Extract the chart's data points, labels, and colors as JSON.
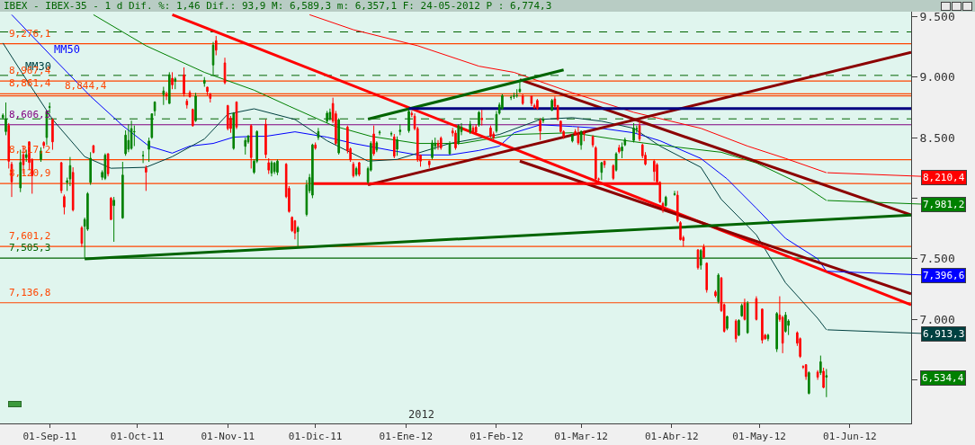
{
  "chart_data": {
    "type": "candlestick",
    "title": "IBEX - IBEX-35 - 1 d Dif. %: 1,46 Dif.: 93,9 M: 6,589,3 m: 6,357,1 F: 24-05-2012 P : 6,774,3",
    "colors": [
      "#008000",
      "#008000",
      "#ff0000",
      "#ff0000",
      "#008000",
      "#ff0000",
      "#008000",
      "#ff0000",
      "#ff0000",
      "#008000",
      "#ff0000",
      "#008000",
      "#008000",
      "#ff0000",
      "#ff0000",
      "#ff0000",
      "#008000",
      "#008000",
      "#ff0000",
      "#ff0000",
      "#008000",
      "#008000",
      "#008000",
      "#ff0000",
      "#008000",
      "#008000",
      "#ff0000",
      "#ff0000",
      "#008000",
      "#008000",
      "#008000",
      "#008000",
      "#008000",
      "#008000",
      "#008000",
      "#ff0000",
      "#008000",
      "#008000",
      "#008000",
      "#008000",
      "#ff0000",
      "#008000",
      "#ff0000",
      "#008000",
      "#ff0000",
      "#ff0000",
      "#ff0000",
      "#ff0000",
      "#008000",
      "#008000",
      "#ff0000",
      "#ff0000",
      "#008000",
      "#ff0000",
      "#ff0000",
      "#ff0000",
      "#ff0000",
      "#008000",
      "#ff0000",
      "#008000",
      "#008000",
      "#ff0000",
      "#008000",
      "#008000",
      "#ff0000",
      "#ff0000",
      "#008000",
      "#008000",
      "#008000",
      "#ff0000",
      "#ff0000",
      "#ff0000",
      "#ff0000",
      "#008000",
      "#008000",
      "#008000",
      "#008000",
      "#ff0000",
      "#008000",
      "#008000",
      "#008000",
      "#ff0000",
      "#ff0000",
      "#008000",
      "#ff0000",
      "#ff0000",
      "#ff0000",
      "#008000",
      "#ff0000",
      "#008000",
      "#008000",
      "#ff0000",
      "#008000",
      "#008000",
      "#008000",
      "#ff0000",
      "#008000",
      "#008000",
      "#008000",
      "#ff0000",
      "#ff0000",
      "#ff0000",
      "#ff0000",
      "#ff0000",
      "#008000",
      "#008000",
      "#ff0000",
      "#ff0000",
      "#008000",
      "#ff0000",
      "#ff0000",
      "#008000",
      "#008000",
      "#008000",
      "#ff0000",
      "#ff0000",
      "#008000",
      "#ff0000",
      "#ff0000",
      "#ff0000",
      "#008000",
      "#008000",
      "#008000",
      "#008000",
      "#008000",
      "#008000",
      "#008000",
      "#ff0000",
      "#ff0000",
      "#ff0000",
      "#ff0000",
      "#ff0000",
      "#008000",
      "#008000",
      "#ff0000",
      "#ff0000",
      "#ff0000",
      "#ff0000",
      "#008000",
      "#ff0000",
      "#ff0000",
      "#008000",
      "#ff0000",
      "#ff0000",
      "#ff0000",
      "#ff0000",
      "#008000",
      "#ff0000",
      "#ff0000",
      "#008000",
      "#ff0000",
      "#008000",
      "#008000",
      "#008000",
      "#008000",
      "#ff0000",
      "#ff0000",
      "#ff0000",
      "#ff0000",
      "#ff0000",
      "#ff0000",
      "#ff0000",
      "#008000",
      "#008000",
      "#ff0000",
      "#ff0000",
      "#ff0000",
      "#ff0000",
      "#008000",
      "#ff0000",
      "#ff0000",
      "#ff0000",
      "#008000",
      "#ff0000",
      "#ff0000",
      "#008000",
      "#ff0000",
      "#008000",
      "#008000",
      "#ff0000",
      "#008000",
      "#ff0000",
      "#ff0000",
      "#ff0000",
      "#008000",
      "#008000",
      "#ff0000",
      "#ff0000",
      "#008000",
      "#008000",
      "#ff0000",
      "#ff0000",
      "#ff0000",
      "#ff0000",
      "#008000",
      "#ff0000",
      "#008000",
      "#ff0000",
      "#008000"
    ],
    "x": [
      "2011-08-16",
      "2011-08-17",
      "2011-08-18",
      "2011-08-19",
      "2011-08-22",
      "2011-08-23",
      "2011-08-24",
      "2011-08-25",
      "2011-08-26",
      "2011-08-29",
      "2011-08-30",
      "2011-08-31",
      "2011-09-01",
      "2011-09-02",
      "2011-09-05",
      "2011-09-06",
      "2011-09-07",
      "2011-09-08",
      "2011-09-09",
      "2011-09-12",
      "2011-09-13",
      "2011-09-14",
      "2011-09-15",
      "2011-09-16",
      "2011-09-19",
      "2011-09-20",
      "2011-09-21",
      "2011-09-22",
      "2011-09-23",
      "2011-09-26",
      "2011-09-27",
      "2011-09-28",
      "2011-09-29",
      "2011-09-30",
      "2011-10-03",
      "2011-10-04",
      "2011-10-05",
      "2011-10-06",
      "2011-10-07",
      "2011-10-10",
      "2011-10-11",
      "2011-10-12",
      "2011-10-13",
      "2011-10-14",
      "2011-10-17",
      "2011-10-18",
      "2011-10-19",
      "2011-10-20",
      "2011-10-21",
      "2011-10-24",
      "2011-10-25",
      "2011-10-26",
      "2011-10-27",
      "2011-10-28",
      "2011-10-31",
      "2011-11-01",
      "2011-11-02",
      "2011-11-03",
      "2011-11-04",
      "2011-11-07",
      "2011-11-08",
      "2011-11-09",
      "2011-11-10",
      "2011-11-11",
      "2011-11-14",
      "2011-11-15",
      "2011-11-16",
      "2011-11-17",
      "2011-11-18",
      "2011-11-21",
      "2011-11-22",
      "2011-11-23",
      "2011-11-24",
      "2011-11-25",
      "2011-11-28",
      "2011-11-29",
      "2011-11-30",
      "2011-12-01",
      "2011-12-02",
      "2011-12-05",
      "2011-12-06",
      "2011-12-07",
      "2011-12-08",
      "2011-12-09",
      "2011-12-12",
      "2011-12-13",
      "2011-12-14",
      "2011-12-15",
      "2011-12-16",
      "2011-12-19",
      "2011-12-20",
      "2011-12-21",
      "2011-12-22",
      "2011-12-23",
      "2011-12-27",
      "2011-12-28",
      "2011-12-29",
      "2011-12-30",
      "2012-01-02",
      "2012-01-03",
      "2012-01-04",
      "2012-01-05",
      "2012-01-06",
      "2012-01-09",
      "2012-01-10",
      "2012-01-11",
      "2012-01-12",
      "2012-01-13",
      "2012-01-16",
      "2012-01-17",
      "2012-01-18",
      "2012-01-19",
      "2012-01-20",
      "2012-01-23",
      "2012-01-24",
      "2012-01-25",
      "2012-01-26",
      "2012-01-27",
      "2012-01-30",
      "2012-01-31",
      "2012-02-01",
      "2012-02-02",
      "2012-02-03",
      "2012-02-06",
      "2012-02-07",
      "2012-02-08",
      "2012-02-09",
      "2012-02-10",
      "2012-02-13",
      "2012-02-14",
      "2012-02-15",
      "2012-02-16",
      "2012-02-17",
      "2012-02-20",
      "2012-02-21",
      "2012-02-22",
      "2012-02-23",
      "2012-02-24",
      "2012-02-27",
      "2012-02-28",
      "2012-02-29",
      "2012-03-01",
      "2012-03-02",
      "2012-03-05",
      "2012-03-06",
      "2012-03-07",
      "2012-03-08",
      "2012-03-09",
      "2012-03-12",
      "2012-03-13",
      "2012-03-14",
      "2012-03-15",
      "2012-03-16",
      "2012-03-19",
      "2012-03-20",
      "2012-03-21",
      "2012-03-22",
      "2012-03-23",
      "2012-03-26",
      "2012-03-27",
      "2012-03-28",
      "2012-03-29",
      "2012-03-30",
      "2012-04-02",
      "2012-04-03",
      "2012-04-04",
      "2012-04-05",
      "2012-04-10",
      "2012-04-11",
      "2012-04-12",
      "2012-04-13",
      "2012-04-16",
      "2012-04-17",
      "2012-04-18",
      "2012-04-19",
      "2012-04-20",
      "2012-04-23",
      "2012-04-24",
      "2012-04-25",
      "2012-04-26",
      "2012-04-27",
      "2012-04-30",
      "2012-05-02",
      "2012-05-03",
      "2012-05-04",
      "2012-05-07",
      "2012-05-08",
      "2012-05-09",
      "2012-05-10",
      "2012-05-11",
      "2012-05-14",
      "2012-05-15",
      "2012-05-16",
      "2012-05-17",
      "2012-05-18",
      "2012-05-21",
      "2012-05-22",
      "2012-05-23",
      "2012-05-24"
    ],
    "ohlc": [
      [
        8.665,
        8.7,
        8.65,
        8.685
      ],
      [
        8.55,
        8.79,
        8.52,
        8.655
      ],
      [
        8.6,
        8.62,
        8.245,
        8.305
      ],
      [
        8.28,
        8.3,
        8.01,
        8.135
      ],
      [
        8.085,
        8.4,
        8.05,
        8.295
      ],
      [
        8.36,
        8.43,
        8.2,
        8.276
      ],
      [
        8.335,
        8.4,
        8.3,
        8.36
      ],
      [
        8.465,
        8.47,
        8.23,
        8.295
      ],
      [
        8.318,
        8.33,
        8.037,
        8.185
      ],
      [
        8.318,
        8.42,
        8.3,
        8.39
      ],
      [
        8.46,
        8.47,
        8.41,
        8.435
      ],
      [
        8.501,
        8.72,
        8.44,
        8.714
      ],
      [
        8.75,
        8.79,
        8.7,
        8.755
      ],
      [
        8.648,
        8.66,
        8.4,
        8.465
      ],
      [
        8.293,
        8.3,
        8.04,
        8.062
      ],
      [
        8.013,
        8.03,
        7.866,
        7.927
      ],
      [
        8.13,
        8.17,
        8.06,
        8.145
      ],
      [
        8.159,
        8.34,
        8.1,
        8.269
      ],
      [
        8.213,
        8.255,
        7.89,
        7.903
      ],
      [
        7.756,
        7.77,
        7.597,
        7.627
      ],
      [
        7.768,
        7.84,
        7.505,
        7.824
      ],
      [
        7.744,
        8.05,
        7.73,
        8.037
      ],
      [
        8.13,
        8.38,
        8.11,
        8.33
      ],
      [
        8.433,
        8.44,
        8.37,
        8.379
      ],
      [
        8.173,
        8.23,
        8.15,
        8.213
      ],
      [
        8.164,
        8.37,
        8.15,
        8.355
      ],
      [
        8.367,
        8.37,
        8.18,
        8.201
      ],
      [
        8.0,
        8.01,
        7.82,
        7.824
      ],
      [
        7.939,
        8.01,
        7.64,
        7.983
      ],
      [
        7.837,
        8.3,
        7.83,
        8.191
      ],
      [
        8.367,
        8.56,
        8.35,
        8.521
      ],
      [
        8.404,
        8.61,
        8.38,
        8.477
      ],
      [
        8.411,
        8.64,
        8.4,
        8.575
      ],
      [
        8.547,
        8.6,
        8.43,
        8.55
      ],
      [
        8.35,
        8.39,
        8.29,
        8.352
      ],
      [
        8.25,
        8.27,
        8.06,
        8.215
      ],
      [
        8.404,
        8.5,
        8.3,
        8.472
      ],
      [
        8.501,
        8.7,
        8.49,
        8.697
      ],
      [
        8.721,
        8.8,
        8.68,
        8.794
      ],
      [
        8.855,
        8.92,
        8.77,
        8.885
      ],
      [
        8.855,
        8.88,
        8.81,
        8.845
      ],
      [
        8.782,
        9.04,
        8.78,
        9.019
      ],
      [
        8.99,
        9.04,
        8.9,
        8.936
      ],
      [
        8.965,
        9.0,
        8.9,
        8.985
      ],
      [
        9.019,
        9.08,
        8.84,
        8.863
      ],
      [
        8.802,
        8.82,
        8.74,
        8.77
      ],
      [
        8.872,
        8.89,
        8.83,
        8.838
      ],
      [
        8.733,
        8.74,
        8.59,
        8.599
      ],
      [
        8.64,
        8.87,
        8.63,
        8.843
      ],
      [
        8.948,
        9.0,
        8.92,
        8.973
      ],
      [
        8.917,
        8.92,
        8.85,
        8.88
      ],
      [
        8.86,
        8.87,
        8.79,
        8.824
      ],
      [
        9.1,
        9.29,
        9.02,
        9.264
      ],
      [
        9.3,
        9.34,
        9.18,
        9.222
      ],
      [
        9.117,
        9.16,
        8.94,
        8.953
      ],
      [
        8.765,
        8.77,
        8.56,
        8.575
      ],
      [
        8.66,
        8.68,
        8.54,
        8.575
      ],
      [
        8.411,
        8.71,
        8.4,
        8.701
      ],
      [
        8.794,
        8.8,
        8.57,
        8.587
      ],
      [
        8.428,
        8.5,
        8.36,
        8.477
      ],
      [
        8.465,
        8.52,
        8.45,
        8.514
      ],
      [
        8.599,
        8.61,
        8.245,
        8.335
      ],
      [
        8.213,
        8.32,
        8.2,
        8.306
      ],
      [
        8.306,
        8.56,
        8.29,
        8.55
      ],
      [
        8.611,
        8.65,
        8.33,
        8.36
      ],
      [
        8.293,
        8.33,
        8.2,
        8.232
      ],
      [
        8.208,
        8.31,
        8.18,
        8.293
      ],
      [
        8.22,
        8.3,
        8.2,
        8.29
      ],
      [
        8.213,
        8.32,
        8.19,
        8.306
      ],
      [
        8.281,
        8.29,
        8.0,
        8.012
      ],
      [
        8.081,
        8.1,
        7.88,
        7.89
      ],
      [
        7.842,
        7.85,
        7.72,
        7.732
      ],
      [
        7.813,
        7.82,
        7.66,
        7.712
      ],
      [
        7.724,
        7.77,
        7.597,
        7.756
      ],
      [
        7.866,
        8.15,
        7.85,
        8.11
      ],
      [
        8.061,
        8.2,
        8.04,
        8.171
      ],
      [
        8.025,
        8.45,
        8.0,
        8.44
      ],
      [
        8.44,
        8.46,
        8.4,
        8.413
      ],
      [
        8.501,
        8.58,
        8.48,
        8.55
      ],
      [
        8.636,
        8.72,
        8.62,
        8.702
      ],
      [
        8.655,
        8.74,
        8.64,
        8.709
      ],
      [
        8.782,
        8.83,
        8.62,
        8.636
      ],
      [
        8.697,
        8.72,
        8.44,
        8.452
      ],
      [
        8.374,
        8.66,
        8.36,
        8.648
      ],
      [
        8.587,
        8.6,
        8.37,
        8.391
      ],
      [
        8.408,
        8.42,
        8.3,
        8.318
      ],
      [
        8.281,
        8.3,
        8.17,
        8.184
      ],
      [
        8.196,
        8.26,
        8.18,
        8.245
      ],
      [
        8.293,
        8.3,
        8.18,
        8.196
      ],
      [
        8.135,
        8.26,
        8.12,
        8.245
      ],
      [
        8.232,
        8.47,
        8.22,
        8.452
      ],
      [
        8.53,
        8.6,
        8.35,
        8.367
      ],
      [
        8.398,
        8.47,
        8.38,
        8.457
      ],
      [
        8.54,
        8.56,
        8.52,
        8.545
      ],
      [
        8.53,
        8.55,
        8.51,
        8.533
      ],
      [
        8.506,
        8.53,
        8.33,
        8.347
      ],
      [
        8.404,
        8.51,
        8.35,
        8.482
      ],
      [
        8.55,
        8.61,
        8.52,
        8.562
      ],
      [
        8.557,
        8.73,
        8.54,
        8.716
      ],
      [
        8.7,
        8.72,
        8.67,
        8.69
      ],
      [
        8.677,
        8.7,
        8.56,
        8.575
      ],
      [
        8.575,
        8.59,
        8.3,
        8.318
      ],
      [
        8.355,
        8.36,
        8.26,
        8.306
      ],
      [
        8.306,
        8.31,
        8.25,
        8.276
      ],
      [
        8.335,
        8.48,
        8.32,
        8.457
      ],
      [
        8.43,
        8.5,
        8.4,
        8.455
      ],
      [
        8.452,
        8.48,
        8.4,
        8.433
      ],
      [
        8.496,
        8.51,
        8.4,
        8.416
      ],
      [
        8.367,
        8.47,
        8.36,
        8.452
      ],
      [
        8.555,
        8.58,
        8.51,
        8.538
      ],
      [
        8.538,
        8.56,
        8.4,
        8.416
      ],
      [
        8.457,
        8.61,
        8.44,
        8.599
      ],
      [
        8.55,
        8.62,
        8.52,
        8.587
      ],
      [
        8.55,
        8.64,
        8.53,
        8.611
      ],
      [
        8.58,
        8.6,
        8.54,
        8.55
      ],
      [
        8.587,
        8.61,
        8.53,
        8.545
      ],
      [
        8.604,
        8.72,
        8.59,
        8.709
      ],
      [
        8.66,
        8.73,
        8.6,
        8.648
      ],
      [
        8.58,
        8.6,
        8.5,
        8.514
      ],
      [
        8.53,
        8.55,
        8.48,
        8.501
      ],
      [
        8.555,
        8.72,
        8.54,
        8.692
      ],
      [
        8.701,
        8.79,
        8.69,
        8.77
      ],
      [
        8.741,
        8.86,
        8.73,
        8.848
      ],
      [
        8.83,
        8.85,
        8.81,
        8.832
      ],
      [
        8.84,
        8.87,
        8.82,
        8.845
      ],
      [
        8.845,
        8.9,
        8.83,
        8.848
      ],
      [
        8.88,
        8.978,
        8.87,
        8.9
      ],
      [
        8.843,
        8.86,
        8.77,
        8.782
      ],
      [
        8.843,
        8.85,
        8.76,
        8.782
      ],
      [
        8.765,
        8.78,
        8.74,
        8.746
      ],
      [
        8.807,
        8.82,
        8.73,
        8.741
      ],
      [
        8.64,
        8.66,
        8.48,
        8.555
      ],
      [
        8.64,
        8.67,
        8.62,
        8.652
      ],
      [
        8.726,
        8.82,
        8.72,
        8.807
      ],
      [
        8.819,
        8.84,
        8.74,
        8.758
      ],
      [
        8.765,
        8.77,
        8.64,
        8.653
      ],
      [
        8.636,
        8.64,
        8.54,
        8.55
      ],
      [
        8.55,
        8.56,
        8.49,
        8.513
      ],
      [
        8.472,
        8.53,
        8.46,
        8.521
      ],
      [
        8.55,
        8.57,
        8.52,
        8.526
      ],
      [
        8.53,
        8.59,
        8.44,
        8.457
      ],
      [
        8.44,
        8.56,
        8.4,
        8.55
      ],
      [
        8.54,
        8.56,
        8.47,
        8.53
      ],
      [
        8.508,
        8.52,
        8.42,
        8.44
      ],
      [
        8.416,
        8.43,
        8.15,
        8.159
      ],
      [
        8.159,
        8.17,
        8.12,
        8.157
      ],
      [
        8.213,
        8.3,
        8.15,
        8.293
      ],
      [
        8.306,
        8.31,
        8.25,
        8.276
      ],
      [
        8.269,
        8.28,
        8.15,
        8.164
      ],
      [
        8.232,
        8.38,
        8.22,
        8.367
      ],
      [
        8.416,
        8.44,
        8.37,
        8.384
      ],
      [
        8.391,
        8.46,
        8.33,
        8.423
      ],
      [
        8.44,
        8.5,
        8.43,
        8.482
      ],
      [
        8.477,
        8.62,
        8.46,
        8.579
      ],
      [
        8.57,
        8.6,
        8.54,
        8.575
      ],
      [
        8.599,
        8.64,
        8.47,
        8.489
      ],
      [
        8.44,
        8.45,
        8.33,
        8.35
      ],
      [
        8.355,
        8.38,
        8.27,
        8.281
      ],
      [
        8.306,
        8.32,
        8.14,
        8.22
      ],
      [
        8.276,
        8.29,
        8.13,
        8.135
      ],
      [
        8.13,
        8.14,
        7.96,
        7.969
      ],
      [
        7.956,
        7.97,
        7.88,
        7.903
      ],
      [
        7.939,
        8.02,
        7.93,
        8.008
      ],
      [
        8.03,
        8.06,
        8.02,
        8.035
      ],
      [
        8.025,
        8.06,
        7.8,
        7.812
      ],
      [
        7.798,
        7.81,
        7.65,
        7.658
      ],
      [
        7.675,
        7.69,
        7.6,
        7.651
      ],
      [
        7.573,
        7.58,
        7.41,
        7.426
      ],
      [
        7.446,
        7.58,
        7.41,
        7.568
      ],
      [
        7.597,
        7.62,
        7.5,
        7.512
      ],
      [
        7.463,
        7.47,
        7.22,
        7.243
      ],
      [
        7.226,
        7.24,
        7.18,
        7.194
      ],
      [
        7.145,
        7.38,
        7.13,
        7.365
      ],
      [
        7.341,
        7.35,
        7.06,
        7.072
      ],
      [
        7.121,
        7.13,
        6.89,
        6.901
      ],
      [
        6.925,
        7.03,
        6.91,
        7.023
      ],
      [
        6.986,
        7.0,
        6.81,
        6.84
      ],
      [
        6.869,
        7.0,
        6.86,
        6.991
      ],
      [
        7.028,
        7.13,
        7.02,
        7.114
      ],
      [
        7.133,
        7.17,
        6.99,
        6.999
      ],
      [
        6.889,
        7.15,
        6.88,
        7.133
      ],
      [
        7.17,
        7.19,
        6.99,
        6.999
      ],
      [
        7.084,
        7.09,
        6.8,
        6.828
      ],
      [
        6.869,
        6.88,
        6.83,
        6.84
      ],
      [
        6.84,
        6.88,
        6.82,
        6.869
      ],
      [
        6.755,
        7.06,
        6.73,
        7.048
      ],
      [
        7.035,
        7.19,
        6.98,
        6.999
      ],
      [
        7.016,
        7.03,
        6.72,
        6.803
      ],
      [
        6.901,
        7.06,
        6.89,
        7.035
      ],
      [
        6.95,
        7.0,
        6.87,
        6.986
      ],
      [
        6.889,
        6.9,
        6.78,
        6.803
      ],
      [
        6.84,
        6.85,
        6.68,
        6.693
      ],
      [
        6.61,
        6.62,
        6.59,
        6.605
      ],
      [
        6.625,
        6.63,
        6.5,
        6.527
      ],
      [
        6.388,
        6.57,
        6.38,
        6.559
      ],
      [
        6.564,
        6.58,
        6.5,
        6.522
      ],
      [
        6.559,
        6.7,
        6.54,
        6.649
      ],
      [
        6.571,
        6.6,
        6.43,
        6.437
      ],
      [
        6.522,
        6.5893,
        6.3571,
        6.5344
      ]
    ],
    "xlim": [
      "2011-08-15",
      "2012-06-22"
    ],
    "ylim": [
      6.14,
      9.54
    ],
    "xticks": [
      {
        "value": "2011-09-01",
        "label": "01-Sep-11"
      },
      {
        "value": "2011-10-01",
        "label": "01-Oct-11"
      },
      {
        "value": "2011-11-01",
        "label": "01-Nov-11"
      },
      {
        "value": "2011-12-01",
        "label": "01-Dic-11"
      },
      {
        "value": "2012-01-01",
        "label": "01-Ene-12"
      },
      {
        "value": "2012-02-01",
        "label": "01-Feb-12"
      },
      {
        "value": "2012-03-01",
        "label": "01-Mar-12"
      },
      {
        "value": "2012-04-01",
        "label": "01-Abr-12"
      },
      {
        "value": "2012-05-01",
        "label": "01-May-12"
      },
      {
        "value": "2012-06-01",
        "label": "01-Jun-12"
      }
    ],
    "yticks": [
      {
        "value": 9.5,
        "label": "9.500"
      },
      {
        "value": 9.0,
        "label": "9.000"
      },
      {
        "value": 8.5,
        "label": "8.500"
      },
      {
        "value": 8.0,
        "label": null
      },
      {
        "value": 7.5,
        "label": "7.500"
      },
      {
        "value": 7.0,
        "label": "7.000"
      },
      {
        "value": 6.5,
        "label": null
      }
    ],
    "series": [
      {
        "type": "line",
        "name": "MM50",
        "color": "#0000ff",
        "x": [
          "2011-08-19",
          "2011-09-02",
          "2011-09-15",
          "2011-09-26",
          "2011-10-05",
          "2011-10-13",
          "2011-10-19",
          "2011-10-27",
          "2011-11-03",
          "2011-11-10",
          "2011-11-14",
          "2011-11-24",
          "2011-12-05",
          "2011-12-14",
          "2011-12-27",
          "2012-01-05",
          "2012-01-16",
          "2012-01-26",
          "2012-02-02",
          "2012-02-07",
          "2012-02-16",
          "2012-02-27",
          "2012-03-08",
          "2012-03-19",
          "2012-03-28",
          "2012-04-11",
          "2012-04-20",
          "2012-04-30",
          "2012-05-10",
          "2012-05-21",
          "2012-05-24"
        ],
        "values": [
          9.515,
          9.163,
          8.841,
          8.599,
          8.43,
          8.372,
          8.43,
          8.452,
          8.504,
          8.511,
          8.511,
          8.548,
          8.504,
          8.452,
          8.394,
          8.357,
          8.357,
          8.394,
          8.43,
          8.54,
          8.606,
          8.592,
          8.577,
          8.54,
          8.474,
          8.328,
          8.159,
          7.917,
          7.668,
          7.499,
          7.3966
        ],
        "value_labels": [
          null,
          null,
          null,
          null,
          null,
          null,
          null,
          null,
          null,
          null,
          null,
          null,
          null,
          null,
          null,
          null,
          null,
          null,
          null,
          null,
          null,
          null,
          null,
          null,
          null,
          null,
          null,
          null,
          null,
          null,
          "7,396,6"
        ]
      },
      {
        "type": "line",
        "name": "MM30",
        "color": "#004040",
        "x": [
          "2011-08-16",
          "2011-08-23",
          "2011-09-02",
          "2011-09-13",
          "2011-09-22",
          "2011-10-04",
          "2011-10-13",
          "2011-10-24",
          "2011-11-01",
          "2011-11-10",
          "2011-11-24",
          "2011-12-05",
          "2011-12-19",
          "2011-12-29",
          "2012-01-16",
          "2012-02-02",
          "2012-02-16",
          "2012-02-27",
          "2012-03-08",
          "2012-03-19",
          "2012-03-28",
          "2012-04-11",
          "2012-04-18",
          "2012-04-30",
          "2012-05-10",
          "2012-05-21",
          "2012-05-24"
        ],
        "values": [
          9.281,
          9.017,
          8.65,
          8.343,
          8.247,
          8.255,
          8.343,
          8.489,
          8.694,
          8.738,
          8.65,
          8.474,
          8.306,
          8.32,
          8.452,
          8.526,
          8.65,
          8.665,
          8.636,
          8.577,
          8.43,
          8.255,
          7.99,
          7.697,
          7.301,
          7.008,
          6.9133
        ],
        "value_labels": [
          null,
          null,
          null,
          null,
          null,
          null,
          null,
          null,
          null,
          null,
          null,
          null,
          null,
          null,
          null,
          null,
          null,
          null,
          null,
          null,
          null,
          null,
          null,
          null,
          null,
          null,
          "6,913,3"
        ]
      },
      {
        "type": "line",
        "color": "#008000",
        "x": [
          "2011-09-16",
          "2011-10-04",
          "2011-10-24",
          "2011-11-10",
          "2011-11-22",
          "2011-12-07",
          "2011-12-20",
          "2012-01-05",
          "2012-01-20",
          "2012-02-07",
          "2012-02-27",
          "2012-03-12",
          "2012-03-28",
          "2012-04-18",
          "2012-04-30",
          "2012-05-16",
          "2012-05-24"
        ],
        "values": [
          9.515,
          9.259,
          9.039,
          8.892,
          8.76,
          8.599,
          8.511,
          8.452,
          8.452,
          8.526,
          8.54,
          8.489,
          8.438,
          8.379,
          8.291,
          8.108,
          7.9812
        ],
        "value_labels": [
          null,
          null,
          null,
          null,
          null,
          null,
          null,
          null,
          null,
          null,
          null,
          null,
          null,
          null,
          null,
          null,
          "7,981,2"
        ]
      },
      {
        "type": "line",
        "color": "#ff0000",
        "x": [
          "2011-11-29",
          "2011-12-14",
          "2012-01-05",
          "2012-01-26",
          "2012-02-07",
          "2012-02-27",
          "2012-03-19",
          "2012-04-11",
          "2012-04-27",
          "2012-05-10",
          "2012-05-24"
        ],
        "values": [
          9.515,
          9.391,
          9.259,
          9.09,
          9.039,
          8.87,
          8.709,
          8.577,
          8.43,
          8.328,
          8.2104
        ],
        "value_labels": [
          null,
          null,
          null,
          null,
          null,
          null,
          null,
          null,
          null,
          null,
          "8,210,4"
        ]
      },
      {
        "type": "line",
        "color": "#ff0000",
        "x": [
          "2011-10-13",
          "2012-06-22"
        ],
        "values": [
          9.515,
          7.119
        ]
      },
      {
        "type": "line",
        "color": "#8b0000",
        "x": [
          "2012-02-09",
          "2012-06-22"
        ],
        "values": [
          8.978,
          7.861
        ]
      },
      {
        "type": "line",
        "color": "#8b0000",
        "x": [
          "2012-02-09",
          "2012-06-22"
        ],
        "values": [
          8.306,
          7.211
        ]
      },
      {
        "type": "line",
        "color": "#8b0000",
        "x": [
          "2011-12-19",
          "2012-06-22"
        ],
        "values": [
          8.11,
          9.205
        ]
      },
      {
        "type": "line",
        "color": "#006400",
        "x": [
          "2011-09-13",
          "2012-06-22"
        ],
        "values": [
          7.499,
          7.861
        ]
      },
      {
        "type": "line",
        "color": "#006400",
        "x": [
          "2011-12-19",
          "2012-02-24"
        ],
        "values": [
          8.653,
          9.059
        ]
      },
      {
        "type": "line",
        "color": "#ff0000",
        "x": [
          "2011-11-30",
          "2012-03-28"
        ],
        "values": [
          8.1209,
          8.1209
        ]
      },
      {
        "type": "line",
        "color": "#000080",
        "x": [
          "2012-01-02",
          "2012-06-22"
        ],
        "values": [
          8.741,
          8.741
        ]
      }
    ],
    "ref_lines": [
      {
        "axis": "y",
        "value": 9.373,
        "color": "#006400",
        "line_style": "dashed"
      },
      {
        "axis": "y",
        "value": 9.014,
        "color": "#006400",
        "line_style": "dashed"
      },
      {
        "axis": "y",
        "value": 8.655,
        "color": "#006400",
        "line_style": "dashed"
      },
      {
        "axis": "y",
        "value": 9.2761,
        "label": "9,276,1",
        "color": "#ff4500"
      },
      {
        "axis": "y",
        "value": 8.9674,
        "label": "8,967,4",
        "color": "#ff4500"
      },
      {
        "axis": "y",
        "value": 8.8614,
        "label": "8,861,4",
        "color": "#ff4500"
      },
      {
        "axis": "y",
        "value": 8.8444,
        "label": "8,844,4",
        "color": "#ff4500"
      },
      {
        "axis": "y",
        "value": 8.6065,
        "label": "8,606,5",
        "color": "#800080"
      },
      {
        "axis": "y",
        "value": 8.3172,
        "label": "8,317,2",
        "color": "#ff4500"
      },
      {
        "axis": "y",
        "value": 8.1209,
        "label": "8,120,9",
        "color": "#ff4500"
      },
      {
        "axis": "y",
        "value": 7.6012,
        "label": "7,601,2",
        "color": "#ff4500"
      },
      {
        "axis": "y",
        "value": 7.5053,
        "label": "7,505,3",
        "color": "#006400"
      },
      {
        "axis": "y",
        "value": 7.1368,
        "label": "7,136,8",
        "color": "#ff4500"
      }
    ],
    "annotations": [
      "6,534,4",
      "2012"
    ]
  }
}
